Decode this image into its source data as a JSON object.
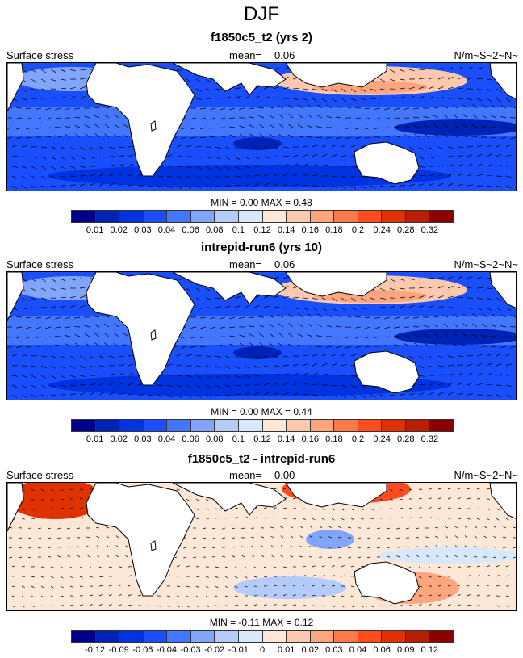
{
  "title": "DJF",
  "colors": [
    "#00008a",
    "#0022b5",
    "#0033e0",
    "#1a4fff",
    "#4477ff",
    "#80a5fa",
    "#b5ccfa",
    "#d6e8fa",
    "#fde8d8",
    "#fcc8ae",
    "#fba67f",
    "#fb7a4a",
    "#ff4c1e",
    "#e03200",
    "#b81e00",
    "#8a0000"
  ],
  "panels": [
    {
      "title": "f1850c5_t2 (yrs 2)",
      "left_label": "Surface stress",
      "mean_label": "mean=",
      "mean": "0.06",
      "units": "N/m~S~2~N~",
      "minmax": "MIN =   0.00 MAX =   0.48",
      "ticks": [
        "0.01",
        "0.02",
        "0.03",
        "0.04",
        "0.06",
        "0.08",
        "0.1",
        "0.12",
        "0.14",
        "0.16",
        "0.18",
        "0.2",
        "0.24",
        "0.28",
        "0.32"
      ]
    },
    {
      "title": "intrepid-run6 (yrs 10)",
      "left_label": "Surface stress",
      "mean_label": "mean=",
      "mean": "0.06",
      "units": "N/m~S~2~N~",
      "minmax": "MIN =   0.00 MAX =   0.44",
      "ticks": [
        "0.01",
        "0.02",
        "0.03",
        "0.04",
        "0.06",
        "0.08",
        "0.1",
        "0.12",
        "0.14",
        "0.16",
        "0.18",
        "0.2",
        "0.24",
        "0.28",
        "0.32"
      ]
    },
    {
      "title": "f1850c5_t2 - intrepid-run6",
      "left_label": "Surface stress",
      "mean_label": "mean=",
      "mean": "0.00",
      "units": "N/m~S~2~N~",
      "minmax": "MIN =  -0.11 MAX =   0.12",
      "ticks": [
        "-0.12",
        "-0.09",
        "-0.06",
        "-0.04",
        "-0.03",
        "-0.02",
        "-0.01",
        "0",
        "0.01",
        "0.02",
        "0.03",
        "0.04",
        "0.06",
        "0.09",
        "0.12"
      ]
    }
  ]
}
